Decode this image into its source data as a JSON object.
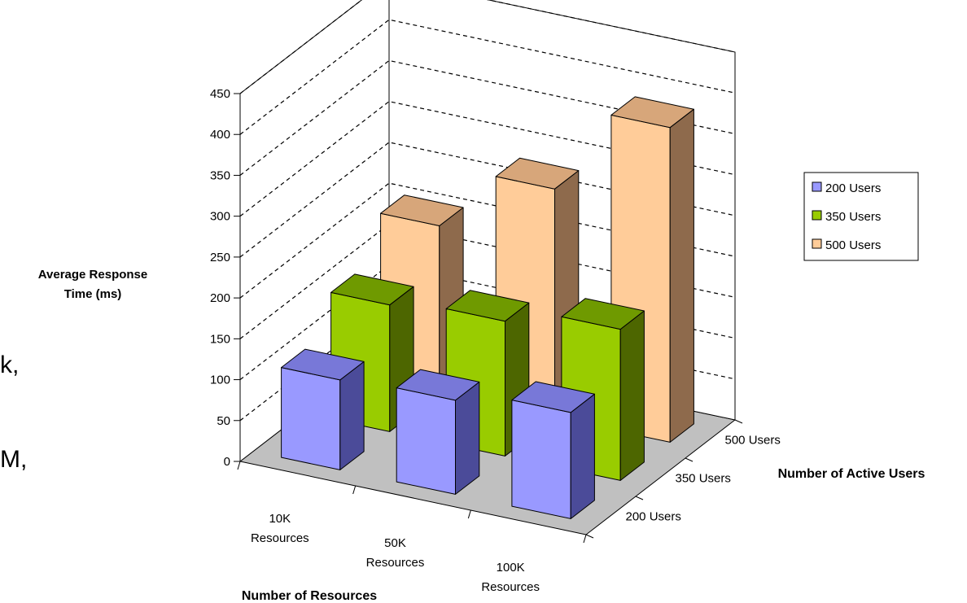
{
  "background_fragments": [
    "k,",
    "M,"
  ],
  "chart_data": {
    "type": "bar",
    "subtype": "3d-column",
    "title": "",
    "ylabel": "Average Response Time (ms)",
    "ylabel_lines": [
      "Average Response",
      "Time (ms)"
    ],
    "xlabel": "Number of Resources",
    "zlabel": "Number of Active Users",
    "ylim": [
      0,
      450
    ],
    "yticks": [
      "0",
      "50",
      "100",
      "150",
      "200",
      "250",
      "300",
      "350",
      "400",
      "450"
    ],
    "categories": [
      "10K Resources",
      "50K Resources",
      "100K Resources"
    ],
    "category_lines": [
      [
        "10K",
        "Resources"
      ],
      [
        "50K",
        "Resources"
      ],
      [
        "100K",
        "Resources"
      ]
    ],
    "depth_categories": [
      "200 Users",
      "350 Users",
      "500 Users"
    ],
    "series": [
      {
        "name": "200 Users",
        "values": [
          110,
          115,
          130
        ],
        "color": "#9999ff",
        "side": "#4b4b99",
        "top": "#7878d8"
      },
      {
        "name": "350 Users",
        "values": [
          155,
          165,
          185
        ],
        "color": "#99cc00",
        "side": "#4d6600",
        "top": "#6f9a00"
      },
      {
        "name": "500 Users",
        "values": [
          205,
          280,
          385
        ],
        "color": "#ffcc99",
        "side": "#8e6a4c",
        "top": "#d7a67a"
      }
    ],
    "legend_position": "right",
    "gridlines": true,
    "gridline_style": "dashed",
    "floor_color": "#c0c0c0"
  }
}
